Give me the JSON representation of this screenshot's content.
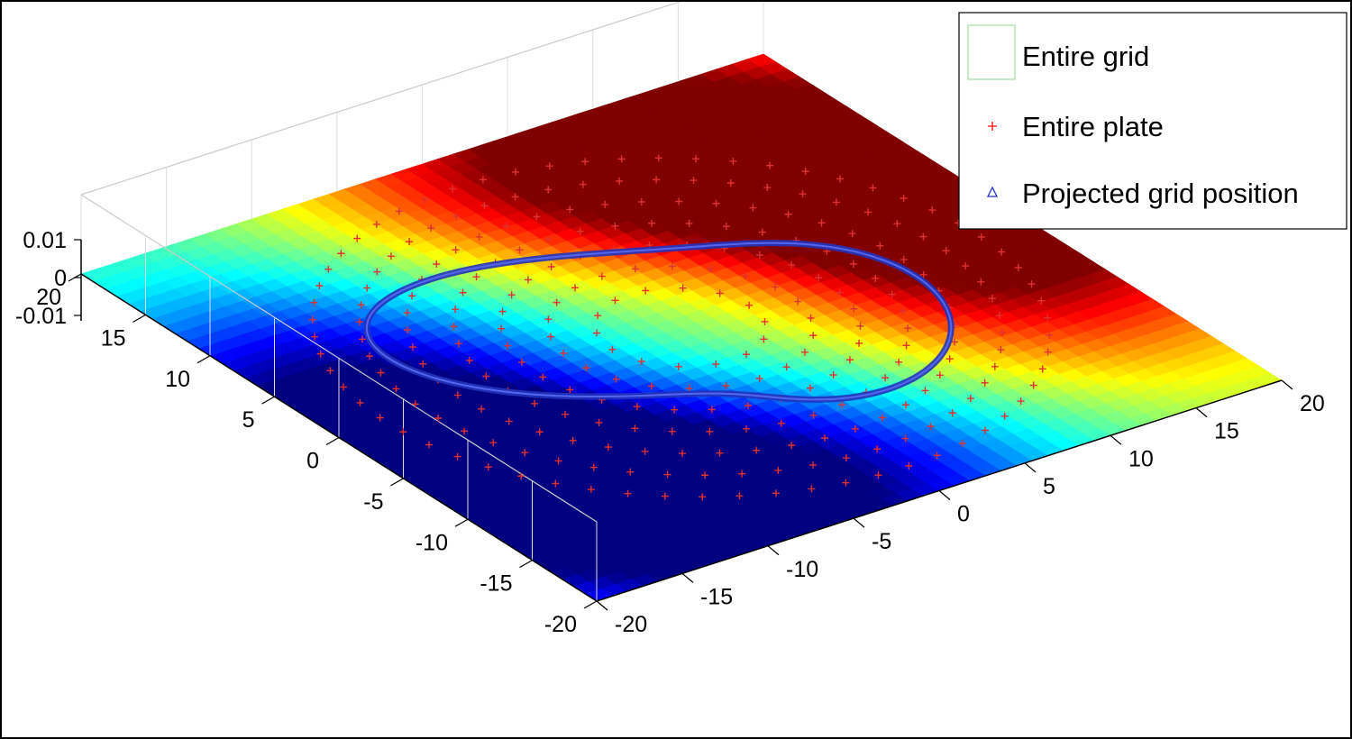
{
  "chart_data": {
    "type": "surface3d",
    "title": "",
    "xlabel": "",
    "ylabel": "",
    "zlabel": "",
    "x_ticks": [
      -20,
      -15,
      -10,
      -5,
      0,
      5,
      10,
      15,
      20
    ],
    "y_ticks": [
      -20,
      -15,
      -10,
      -5,
      0,
      5,
      10,
      15,
      20
    ],
    "z_ticks": [
      "0.01",
      "0",
      "-0.01"
    ],
    "xlim": [
      -20,
      20
    ],
    "ylim": [
      -20,
      20
    ],
    "zlim": [
      -0.01,
      0.01
    ],
    "colormap": "jet",
    "grid": true,
    "legend_position": "top-right",
    "series": [
      {
        "name": "Entire grid",
        "kind": "surface",
        "color": "#66cc66",
        "marker": "none"
      },
      {
        "name": "Entire plate",
        "kind": "points",
        "color": "#ff3333",
        "marker": "+"
      },
      {
        "name": "Projected grid position",
        "kind": "curve",
        "color": "#2233bb",
        "marker": "triangle"
      }
    ]
  }
}
